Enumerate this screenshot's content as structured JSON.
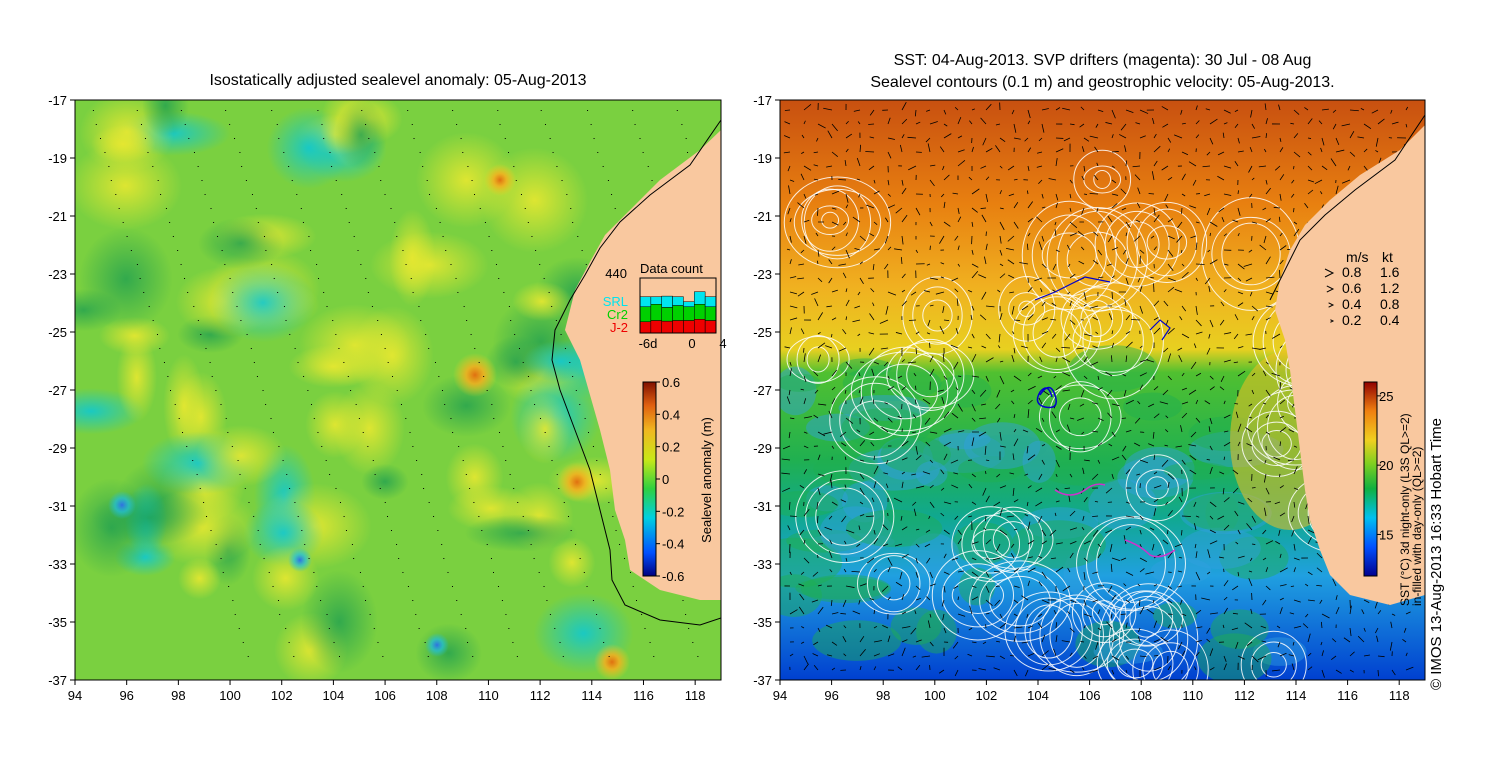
{
  "left_panel": {
    "title": "Isostatically adjusted sealevel anomaly: 05-Aug-2013",
    "x_ticks": [
      "94",
      "96",
      "98",
      "100",
      "102",
      "104",
      "106",
      "108",
      "110",
      "112",
      "114",
      "116",
      "118"
    ],
    "y_ticks": [
      "-17",
      "-19",
      "-21",
      "-23",
      "-25",
      "-27",
      "-29",
      "-31",
      "-33",
      "-35",
      "-37"
    ],
    "colorbar": {
      "label": "Sealevel anomaly (m)",
      "ticks": [
        "0.6",
        "0.4",
        "0.2",
        "0",
        "-0.2",
        "-0.4",
        "-0.6"
      ],
      "range": [
        -0.6,
        0.6
      ]
    },
    "data_count": {
      "title": "Data count",
      "max_label": "440",
      "x_ticks": [
        "-6d",
        "0",
        "4"
      ],
      "legend": [
        {
          "label": "SRL",
          "color": "#00e5ee"
        },
        {
          "label": "Cr2",
          "color": "#00d000"
        },
        {
          "label": "J-2",
          "color": "#ee0000"
        }
      ],
      "bars": [
        {
          "SRL": 80,
          "Cr2": 120,
          "J-2": 90
        },
        {
          "SRL": 60,
          "Cr2": 130,
          "J-2": 100
        },
        {
          "SRL": 90,
          "Cr2": 110,
          "J-2": 95
        },
        {
          "SRL": 70,
          "Cr2": 120,
          "J-2": 100
        },
        {
          "SRL": 40,
          "Cr2": 110,
          "J-2": 100
        },
        {
          "SRL": 100,
          "Cr2": 120,
          "J-2": 110
        },
        {
          "SRL": 80,
          "Cr2": 110,
          "J-2": 100
        }
      ]
    }
  },
  "right_panel": {
    "title_line1": "SST: 04-Aug-2013. SVP drifters (magenta): 30 Jul - 08 Aug",
    "title_line2": "Sealevel contours (0.1 m) and geostrophic velocity: 05-Aug-2013.",
    "x_ticks": [
      "94",
      "96",
      "98",
      "100",
      "102",
      "104",
      "106",
      "108",
      "110",
      "112",
      "114",
      "116",
      "118"
    ],
    "y_ticks": [
      "-17",
      "-19",
      "-21",
      "-23",
      "-25",
      "-27",
      "-29",
      "-31",
      "-33",
      "-35",
      "-37"
    ],
    "colorbar": {
      "label_line1": "SST (°C) 3d night-only (L3S QL>=2)",
      "label_line2": "in-filled with day-only (QL>=2)",
      "ticks": [
        "25",
        "20",
        "15"
      ],
      "range": [
        12,
        26
      ]
    },
    "speed_legend": {
      "header_ms": "m/s",
      "header_kt": "kt",
      "rows": [
        {
          "ms": "0.8",
          "kt": "1.6"
        },
        {
          "ms": "0.6",
          "kt": "1.2"
        },
        {
          "ms": "0.4",
          "kt": "0.8"
        },
        {
          "ms": "0.2",
          "kt": "0.4"
        }
      ]
    }
  },
  "credit": "© IMOS 13-Aug-2013 16:33 Hobart Time",
  "colors": {
    "land": "#f9c89f",
    "coastline": "#000000",
    "contours": "#ffffff",
    "vectors": "#000000",
    "drifters_magenta": "#cc33cc",
    "drifters_blue": "#0000cc"
  }
}
